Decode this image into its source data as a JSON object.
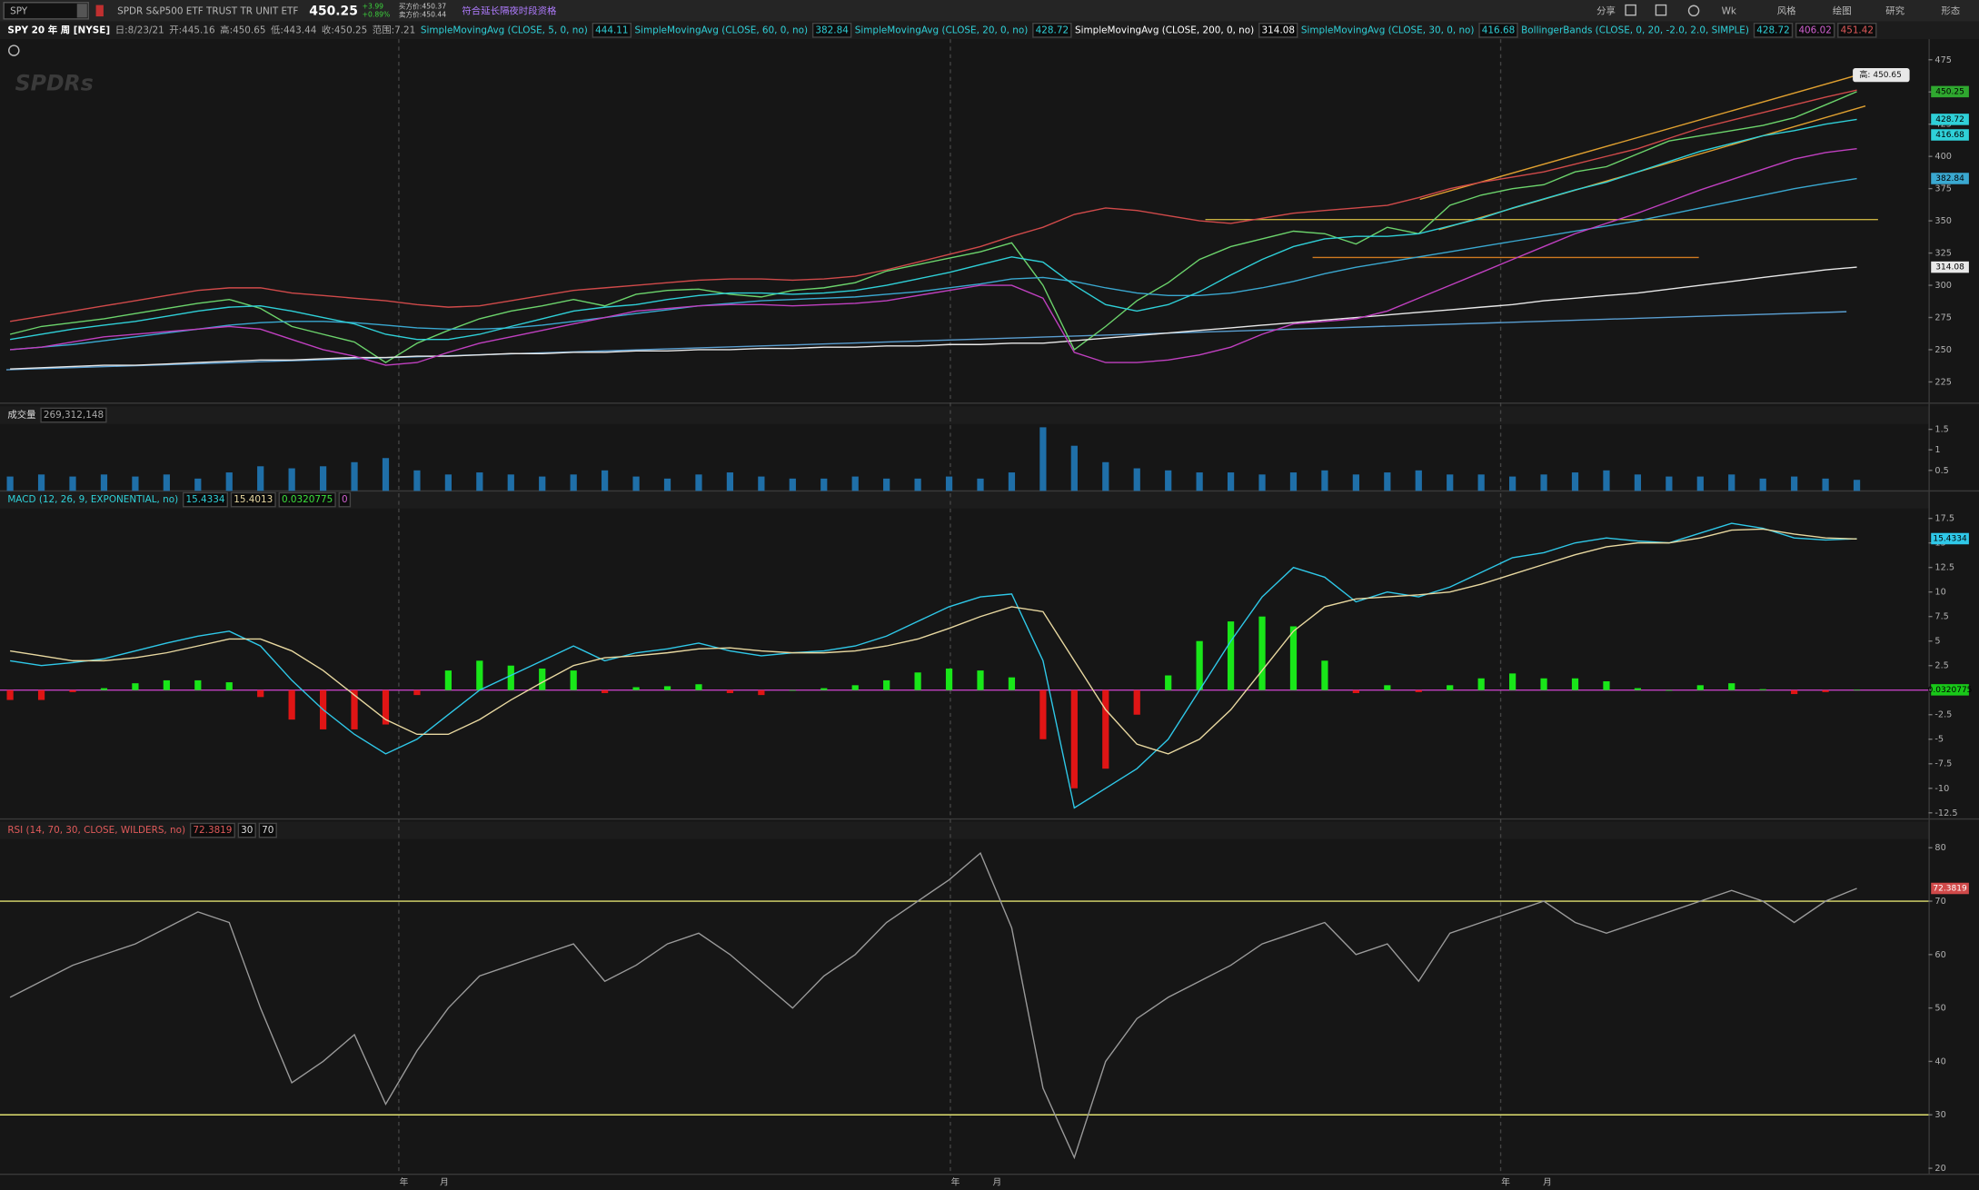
{
  "toolbar": {
    "symbol": "SPY",
    "description": "SPDR S&P500 ETF TRUST TR UNIT ETF",
    "last": "450.25",
    "change": "+3.99",
    "change_pct": "+0.89%",
    "bid": "买方价:450.37",
    "ask": "卖方价:450.44",
    "notice": "符合延长隔夜时段资格",
    "period": "Wk",
    "buttons": [
      "分享",
      "风格",
      "绘图",
      "研究",
      "形态"
    ]
  },
  "chart_header": {
    "title": "SPY 20 年 周 [NYSE]",
    "date": "日:8/23/21",
    "open": "开:445.16",
    "high": "高:450.65",
    "low": "低:443.44",
    "close": "收:450.25",
    "range": "范围:7.21",
    "logo": "SPDRs",
    "high_callout": "高: 450.65"
  },
  "x_labels": [
    "年",
    "月",
    "年",
    "月",
    "年",
    "月"
  ],
  "chart_data": [
    {
      "type": "line",
      "ylim": [
        209,
        491
      ],
      "yticks": [
        225,
        250,
        275,
        300,
        325,
        350,
        375,
        400,
        425,
        450,
        475
      ],
      "grid": false,
      "header_studies": [
        {
          "name": "SimpleMovingAvg (CLOSE, 5, 0, no)",
          "value": 444.11
        },
        {
          "name": "SimpleMovingAvg (CLOSE, 30, 0, no)",
          "value": 416.68
        }
      ],
      "series": [
        {
          "color": "#6cd46c",
          "values": [
            262,
            268,
            271,
            274,
            278,
            282,
            286,
            289,
            282,
            268,
            262,
            256,
            240,
            255,
            265,
            274,
            280,
            284,
            289,
            284,
            293,
            296,
            297,
            293,
            291,
            296,
            298,
            302,
            311,
            316,
            321,
            326,
            333,
            300,
            250,
            268,
            288,
            302,
            320,
            330,
            336,
            342,
            340,
            332,
            345,
            340,
            362,
            370,
            375,
            378,
            388,
            392,
            402,
            412,
            416,
            420,
            424,
            430,
            440,
            450.25
          ]
        },
        {
          "name": "SimpleMovingAvg (CLOSE, 60, 0, no)",
          "color": "#3aa8d0",
          "values": [
            250,
            252,
            254,
            257,
            260,
            263,
            266,
            269,
            271,
            272,
            272,
            271,
            269,
            267,
            266,
            266,
            267,
            269,
            272,
            275,
            278,
            281,
            284,
            286,
            288,
            289,
            290,
            291,
            293,
            295,
            298,
            301,
            305,
            306,
            303,
            298,
            294,
            292,
            292,
            294,
            298,
            303,
            309,
            314,
            318,
            322,
            326,
            330,
            334,
            338,
            342,
            346,
            350,
            355,
            360,
            365,
            370,
            375,
            379,
            382.84
          ]
        },
        {
          "name": "SimpleMovingAvg (CLOSE, 20, 0, no)",
          "color": "#2fd0d8",
          "values": [
            258,
            262,
            266,
            269,
            272,
            276,
            280,
            283,
            284,
            280,
            275,
            270,
            262,
            258,
            258,
            262,
            268,
            274,
            280,
            283,
            285,
            289,
            292,
            294,
            294,
            293,
            294,
            296,
            300,
            305,
            310,
            316,
            322,
            318,
            300,
            285,
            280,
            285,
            295,
            308,
            320,
            330,
            336,
            338,
            338,
            340,
            346,
            352,
            360,
            367,
            374,
            380,
            388,
            396,
            404,
            410,
            416,
            420,
            425,
            428.72
          ]
        },
        {
          "name": "SimpleMovingAvg (CLOSE, 200, 0, no)",
          "color": "#e8e8e8",
          "values": [
            235,
            236,
            237,
            238,
            238,
            239,
            240,
            241,
            242,
            242,
            243,
            244,
            244,
            245,
            245,
            246,
            247,
            247,
            248,
            248,
            249,
            249,
            250,
            250,
            251,
            251,
            252,
            252,
            253,
            253,
            254,
            254,
            255,
            255,
            257,
            259,
            261,
            263,
            265,
            267,
            269,
            271,
            273,
            275,
            277,
            279,
            281,
            283,
            285,
            288,
            290,
            292,
            294,
            297,
            300,
            303,
            306,
            309,
            312,
            314.08
          ]
        },
        {
          "name": "BollingerBands (CLOSE, 0, 20, -2.0, 2.0, SIMPLE)",
          "color": "#d04a4a",
          "values": [
            272,
            276,
            280,
            284,
            288,
            292,
            296,
            298,
            298,
            294,
            292,
            290,
            288,
            285,
            283,
            284,
            288,
            292,
            296,
            298,
            300,
            302,
            304,
            305,
            305,
            304,
            305,
            307,
            312,
            318,
            324,
            330,
            338,
            345,
            355,
            360,
            358,
            354,
            350,
            348,
            352,
            356,
            358,
            360,
            362,
            368,
            375,
            380,
            384,
            388,
            394,
            400,
            406,
            414,
            422,
            428,
            434,
            440,
            446,
            451.42
          ]
        },
        {
          "color": "#c040c0",
          "values": [
            250,
            252,
            256,
            260,
            262,
            264,
            266,
            268,
            266,
            258,
            250,
            245,
            238,
            240,
            248,
            255,
            260,
            265,
            270,
            275,
            280,
            282,
            284,
            285,
            285,
            284,
            285,
            286,
            288,
            292,
            296,
            300,
            300,
            290,
            248,
            240,
            240,
            242,
            246,
            252,
            262,
            270,
            272,
            274,
            280,
            290,
            300,
            310,
            320,
            330,
            340,
            348,
            356,
            365,
            374,
            382,
            390,
            398,
            403,
            406.02
          ]
        }
      ]
    },
    {
      "type": "bar",
      "title": "成交量",
      "current": "269,312,148",
      "ylim": [
        0,
        1.63
      ],
      "yticks": [
        0.5,
        1,
        1.5
      ],
      "grid": false,
      "series": [
        {
          "color": "#1f6fa8",
          "values": [
            0.35,
            0.4,
            0.35,
            0.4,
            0.35,
            0.4,
            0.3,
            0.45,
            0.6,
            0.55,
            0.6,
            0.7,
            0.8,
            0.5,
            0.4,
            0.45,
            0.4,
            0.35,
            0.4,
            0.5,
            0.35,
            0.3,
            0.4,
            0.45,
            0.35,
            0.3,
            0.3,
            0.35,
            0.3,
            0.3,
            0.35,
            0.3,
            0.45,
            1.55,
            1.1,
            0.7,
            0.55,
            0.5,
            0.45,
            0.45,
            0.4,
            0.45,
            0.5,
            0.4,
            0.45,
            0.5,
            0.4,
            0.4,
            0.35,
            0.4,
            0.45,
            0.5,
            0.4,
            0.35,
            0.35,
            0.4,
            0.3,
            0.35,
            0.3,
            0.269312148
          ]
        }
      ]
    },
    {
      "type": "line",
      "title": "MACD (12, 26, 9, EXPONENTIAL, no)",
      "ylim": [
        -13,
        18.5
      ],
      "yticks": [
        -12.5,
        -10,
        -7.5,
        -5,
        -2.5,
        0,
        2.5,
        5,
        7.5,
        10,
        12.5,
        15,
        17.5
      ],
      "grid": false,
      "zero_line": 0,
      "zero_color": "#c040c0",
      "series": [
        {
          "type": "bar",
          "color": "#19e619",
          "negative_color": "#e01515",
          "values": [
            -1,
            -1,
            -0.2,
            0.2,
            0.7,
            1,
            1,
            0.8,
            -0.7,
            -3,
            -4,
            -4,
            -3.5,
            -0.5,
            2,
            3,
            2.5,
            2.2,
            2,
            -0.3,
            0.3,
            0.4,
            0.6,
            -0.3,
            -0.5,
            0,
            0.2,
            0.5,
            1,
            1.8,
            2.2,
            2,
            1.3,
            -5,
            -10,
            -8,
            -2.5,
            1.5,
            5,
            7,
            7.5,
            6.5,
            3,
            -0.3,
            0.5,
            -0.2,
            0.5,
            1.2,
            1.7,
            1.2,
            1.2,
            0.9,
            0.2,
            0,
            0.5,
            0.7,
            0.1,
            -0.4,
            -0.2,
            0.0320775
          ]
        },
        {
          "color": "#2fc8e8",
          "values": [
            3,
            2.5,
            2.8,
            3.2,
            4,
            4.8,
            5.5,
            6,
            4.5,
            1,
            -2,
            -4.5,
            -6.5,
            -5,
            -2.5,
            0,
            1.5,
            3,
            4.5,
            3,
            3.8,
            4.2,
            4.8,
            4,
            3.5,
            3.8,
            4,
            4.5,
            5.5,
            7,
            8.5,
            9.5,
            9.8,
            3,
            -12,
            -10,
            -8,
            -5,
            0,
            5,
            9.5,
            12.5,
            11.5,
            9,
            10,
            9.5,
            10.5,
            12,
            13.5,
            14,
            15,
            15.5,
            15.2,
            15,
            16,
            17,
            16.5,
            15.5,
            15.3,
            15.4334
          ]
        },
        {
          "color": "#e8d8a0",
          "values": [
            4,
            3.5,
            3,
            3,
            3.3,
            3.8,
            4.5,
            5.2,
            5.2,
            4,
            2,
            -0.5,
            -3,
            -4.5,
            -4.5,
            -3,
            -1,
            0.8,
            2.5,
            3.3,
            3.5,
            3.8,
            4.2,
            4.3,
            4,
            3.8,
            3.8,
            4,
            4.5,
            5.2,
            6.3,
            7.5,
            8.5,
            8,
            3,
            -2,
            -5.5,
            -6.5,
            -5,
            -2,
            2,
            6,
            8.5,
            9.3,
            9.5,
            9.7,
            10,
            10.8,
            11.8,
            12.8,
            13.8,
            14.6,
            15,
            15,
            15.5,
            16.3,
            16.4,
            15.9,
            15.5,
            15.4013
          ]
        }
      ]
    },
    {
      "type": "line",
      "title": "RSI (14, 70, 30, CLOSE, WILDERS, no)",
      "ylim": [
        19,
        81.6
      ],
      "yticks": [
        20,
        30,
        40,
        50,
        60,
        70,
        80
      ],
      "grid": false,
      "levels": [
        30,
        70
      ],
      "level_color": "#e0e070",
      "series": [
        {
          "color": "#9a9a9a",
          "badge_color": "#d04a4a",
          "values": [
            52,
            55,
            58,
            60,
            62,
            65,
            68,
            66,
            50,
            36,
            40,
            45,
            32,
            42,
            50,
            56,
            58,
            60,
            62,
            55,
            58,
            62,
            64,
            60,
            55,
            50,
            56,
            60,
            66,
            70,
            74,
            79,
            65,
            35,
            22,
            40,
            48,
            52,
            55,
            58,
            62,
            64,
            66,
            60,
            62,
            55,
            64,
            66,
            68,
            70,
            66,
            64,
            66,
            68,
            70,
            72,
            70,
            66,
            70,
            72.3819
          ]
        }
      ]
    }
  ]
}
